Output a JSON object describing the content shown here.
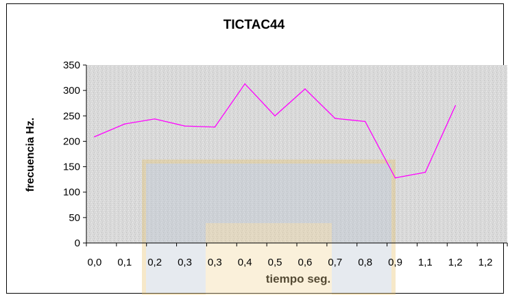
{
  "chart_data": {
    "type": "line",
    "title": "TICTAC44",
    "xlabel": "tiempo seg.",
    "ylabel": "frecuencia Hz.",
    "x_tick_labels": [
      "0,0",
      "0,1",
      "0,2",
      "0,3",
      "0,3",
      "0,4",
      "0,5",
      "0,6",
      "0,7",
      "0,8",
      "0,9",
      "1,1",
      "1,2",
      "1,2"
    ],
    "ylim": [
      0,
      350
    ],
    "y_ticks": [
      0,
      50,
      100,
      150,
      200,
      250,
      300,
      350
    ],
    "series": [
      {
        "values": [
          209,
          234,
          244,
          230,
          228,
          313,
          250,
          303,
          245,
          239,
          128,
          139,
          270
        ]
      }
    ],
    "grid": false,
    "legend": "none",
    "colors": {
      "line": "#ff00ff",
      "plot_area": "#d8d8d8"
    }
  }
}
